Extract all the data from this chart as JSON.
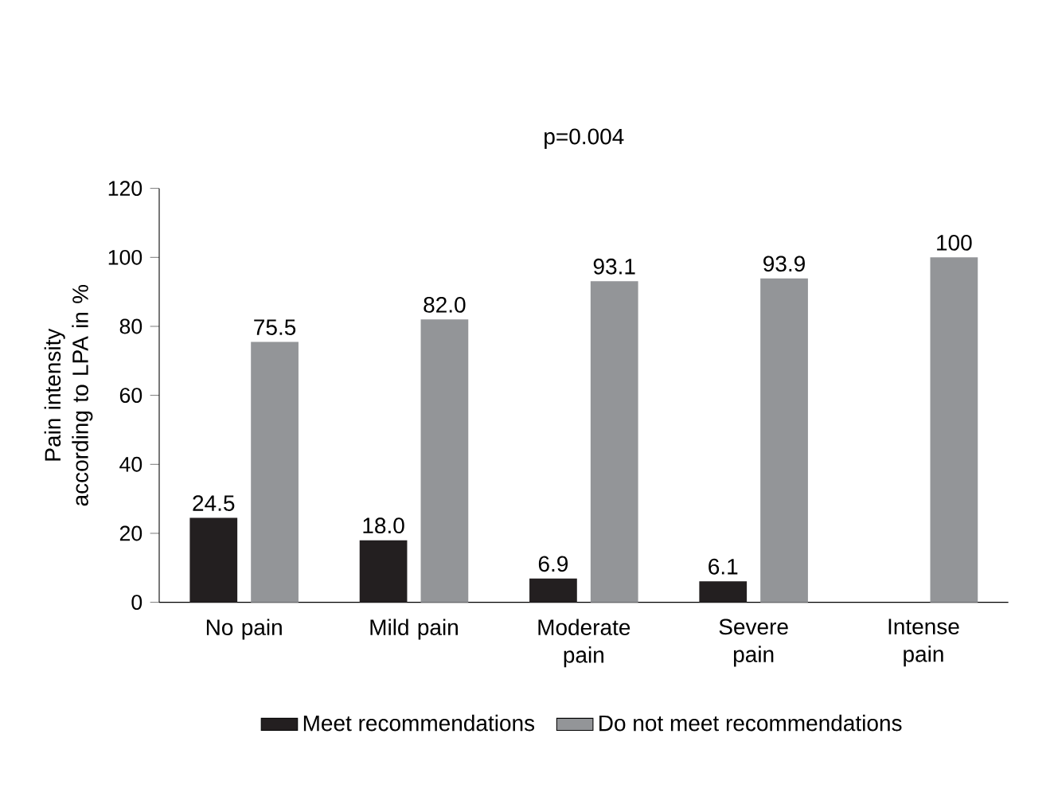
{
  "chart_data": {
    "type": "bar",
    "ylabel": "Pain intensity according to LPA in %",
    "annotations": [
      "p=0.004"
    ],
    "categories": [
      "No pain",
      "Mild pain",
      "Moderate pain",
      "Severe pain",
      "Intense pain"
    ],
    "series": [
      {
        "name": "Meet recommendations",
        "color": "#231f20",
        "values": [
          24.5,
          18.0,
          6.9,
          6.1,
          null
        ],
        "value_labels": [
          "24.5",
          "18.0",
          "6.9",
          "6.1",
          null
        ]
      },
      {
        "name": "Do not meet recommendations",
        "color": "#939598",
        "values": [
          75.5,
          82.0,
          93.1,
          93.9,
          100
        ],
        "value_labels": [
          "75.5",
          "82.0",
          "93.1",
          "93.9",
          "100"
        ]
      }
    ],
    "ylim": [
      0,
      120
    ],
    "yticks": [
      0,
      20,
      40,
      60,
      80,
      100,
      120
    ],
    "grid": false,
    "legend": "bottom"
  }
}
